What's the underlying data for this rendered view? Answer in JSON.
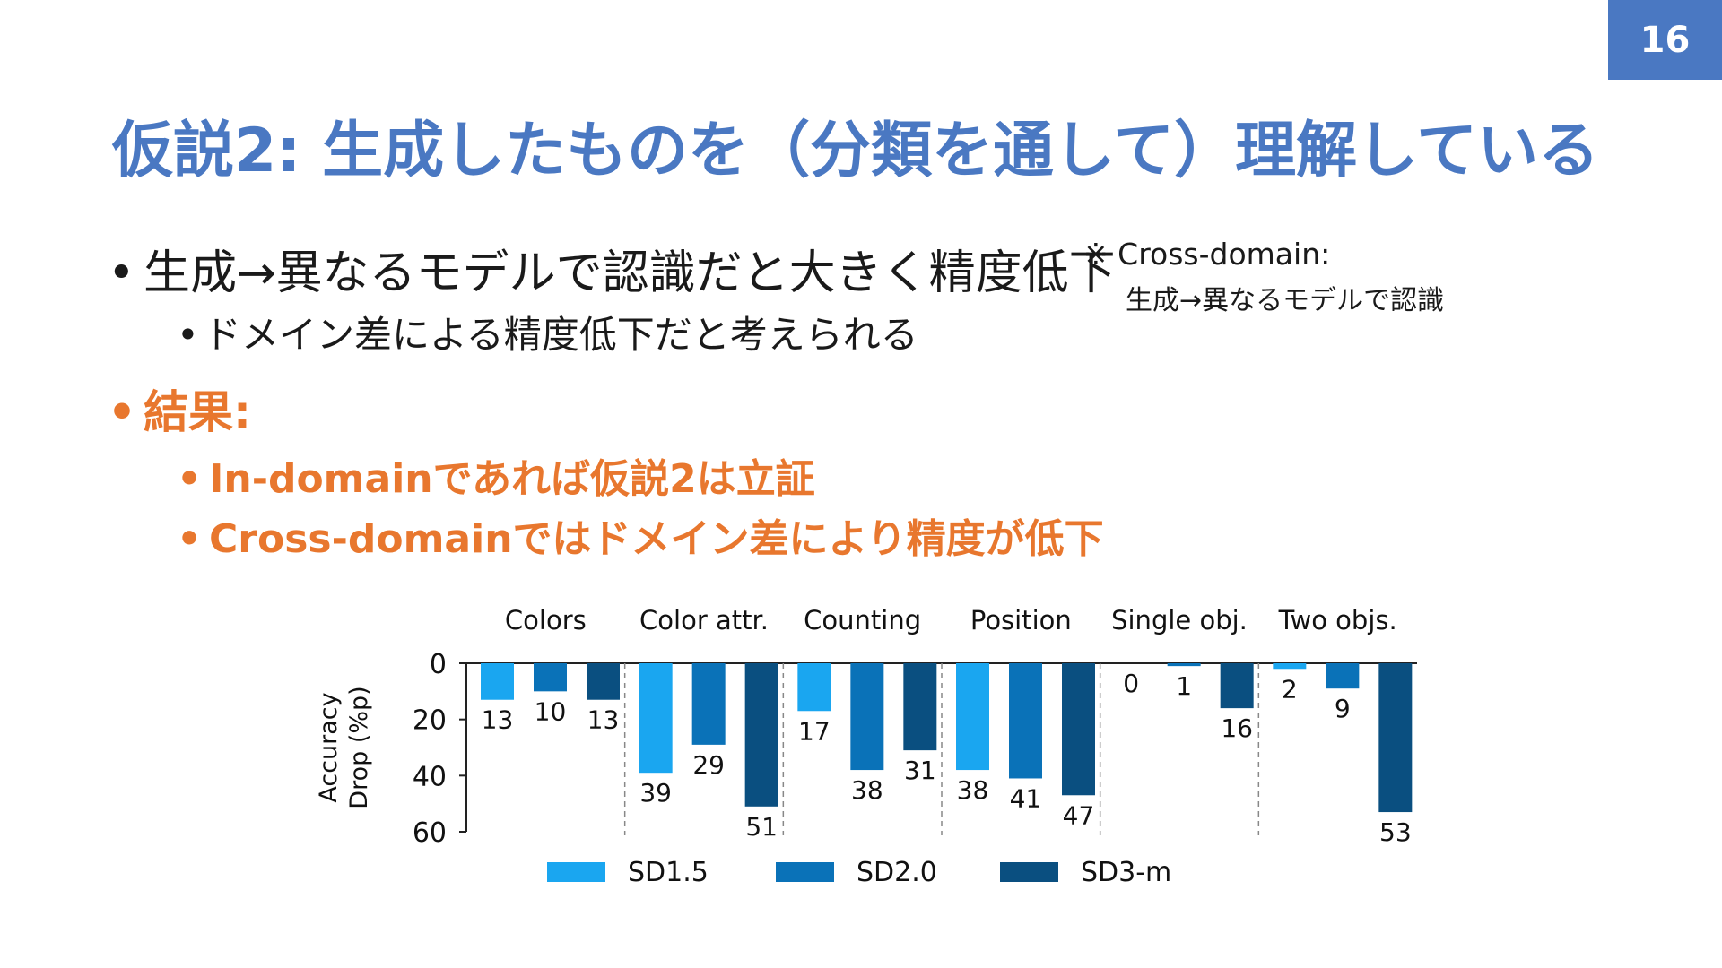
{
  "slide_number": "16",
  "title": "仮説2: 生成したものを（分類を通して）理解している",
  "bullets": {
    "main": "生成→異なるモデルで認識だと大きく精度低下",
    "sub": "ドメイン差による精度低下だと考えられる",
    "result_heading": "結果:",
    "result_in": "In-domainであれば仮説2は立証",
    "result_cross": "Cross-domainではドメイン差により精度が低下"
  },
  "note": {
    "mark": "※",
    "term": "Cross-domain:",
    "definition": "生成→異なるモデルで認識"
  },
  "colors": {
    "title": "#4a78c2",
    "accent": "#e8772e",
    "sd15": "#1aa6f0",
    "sd20": "#0a72b8",
    "sd3m": "#0a4f80"
  },
  "chart_data": {
    "type": "bar",
    "categories": [
      "Colors",
      "Color attr.",
      "Counting",
      "Position",
      "Single obj.",
      "Two objs."
    ],
    "series": [
      {
        "name": "SD1.5",
        "values": [
          13,
          39,
          17,
          38,
          0,
          2
        ]
      },
      {
        "name": "SD2.0",
        "values": [
          10,
          29,
          38,
          41,
          1,
          9
        ]
      },
      {
        "name": "SD3-m",
        "values": [
          13,
          51,
          31,
          47,
          16,
          53
        ]
      }
    ],
    "ylabel": "Accuracy Drop (%p)",
    "ylim": [
      0,
      60
    ],
    "yticks": [
      0,
      20,
      40,
      60
    ],
    "y_inverted": true,
    "legend_position": "bottom"
  }
}
